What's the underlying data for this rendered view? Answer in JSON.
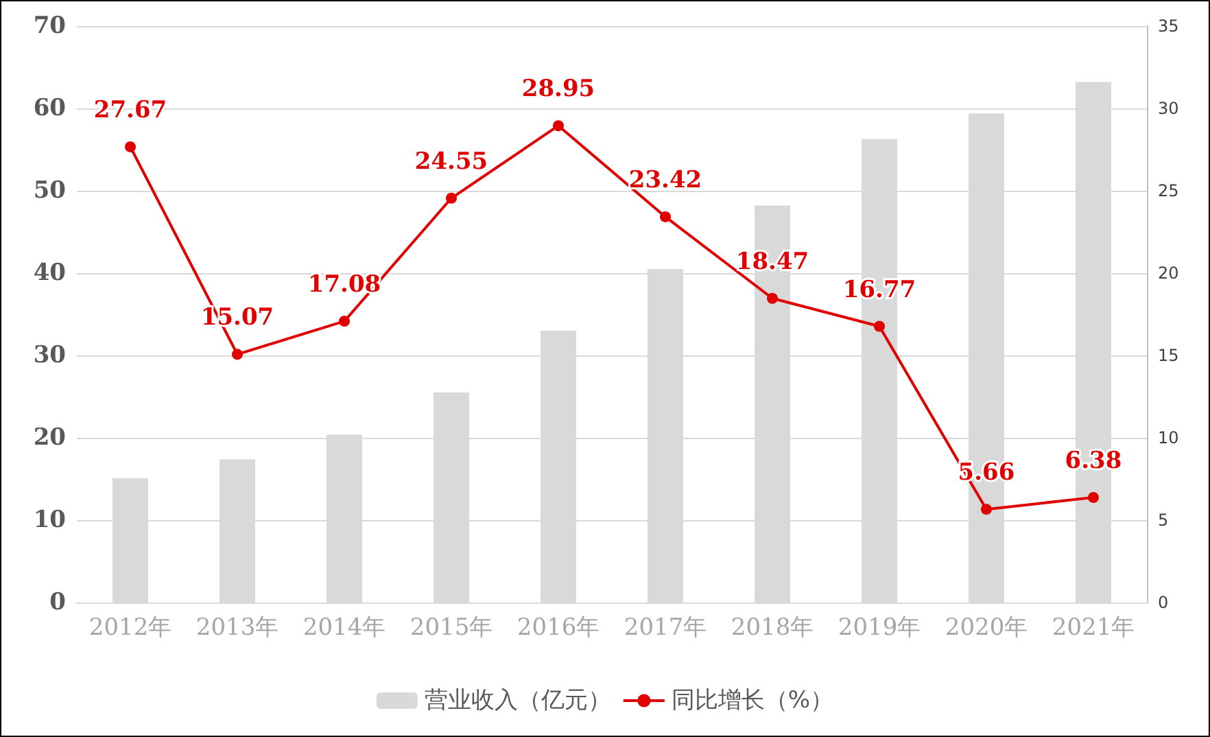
{
  "chart_data": {
    "type": "bar",
    "categories": [
      "2012年",
      "2013年",
      "2014年",
      "2015年",
      "2016年",
      "2017年",
      "2018年",
      "2019年",
      "2020年",
      "2021年"
    ],
    "series": [
      {
        "name": "营业收入（亿元）",
        "color": "#d9d9d9",
        "values": [
          15.1,
          17.4,
          20.4,
          25.5,
          33.0,
          40.5,
          48.2,
          56.3,
          59.4,
          63.2
        ]
      },
      {
        "name": "同比增长（%）",
        "type": "line",
        "axis": "y2",
        "color": "#e00000",
        "values": [
          27.67,
          15.07,
          17.08,
          24.55,
          28.95,
          23.42,
          18.47,
          16.77,
          5.66,
          6.38
        ],
        "value_labels": [
          "27.67",
          "15.07",
          "17.08",
          "24.55",
          "28.95",
          "23.42",
          "18.47",
          "16.77",
          "5.66",
          "6.38"
        ]
      }
    ],
    "ylim": [
      0,
      70
    ],
    "yticks": [
      0,
      10,
      20,
      30,
      40,
      50,
      60,
      70
    ],
    "y2lim": [
      0,
      35
    ],
    "y2ticks": [
      0,
      5,
      10,
      15,
      20,
      25,
      30,
      35
    ],
    "grid": "y",
    "legend": "bottom",
    "marker": "circle",
    "line_style": "solid"
  }
}
